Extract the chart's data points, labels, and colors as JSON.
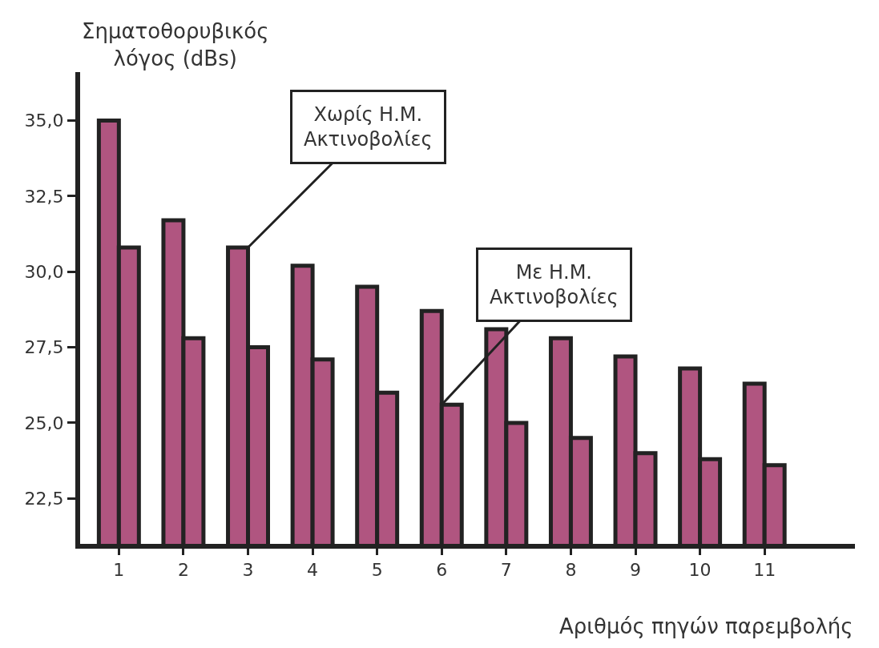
{
  "chart_data": {
    "type": "bar",
    "ylabel": "Σηματοθορυβικός λόγος (dBs)",
    "xlabel": "Αριθμός πηγών παρεμβολής",
    "categories": [
      "1",
      "2",
      "3",
      "4",
      "5",
      "6",
      "7",
      "8",
      "9",
      "10",
      "11"
    ],
    "series": [
      {
        "color": "#b05580",
        "values": [
          35.0,
          31.7,
          30.8,
          30.2,
          29.5,
          28.7,
          28.1,
          27.8,
          27.2,
          26.8,
          26.3
        ]
      },
      {
        "color": "#b05580",
        "values": [
          30.8,
          27.8,
          27.5,
          27.1,
          26.0,
          25.6,
          25.0,
          24.5,
          24.0,
          23.8,
          23.6
        ]
      }
    ],
    "ylim": [
      21.0,
      36.6
    ],
    "yticks": [
      {
        "value": 22.5,
        "label": "22,5"
      },
      {
        "value": 25.0,
        "label": "25,0"
      },
      {
        "value": 27.5,
        "label": "27,5"
      },
      {
        "value": 30.0,
        "label": "30,0"
      },
      {
        "value": 32.5,
        "label": "32,5"
      },
      {
        "value": 35.0,
        "label": "35,0"
      }
    ],
    "annotations": [
      {
        "text": "Χωρίς Η.Μ.\nΑκτινοβολίες",
        "x": "3",
        "y": 30.8
      },
      {
        "text": "Με Η.Μ.\nΑκτινοβολίες",
        "x": "6",
        "y": 25.6
      }
    ],
    "legend": false
  }
}
